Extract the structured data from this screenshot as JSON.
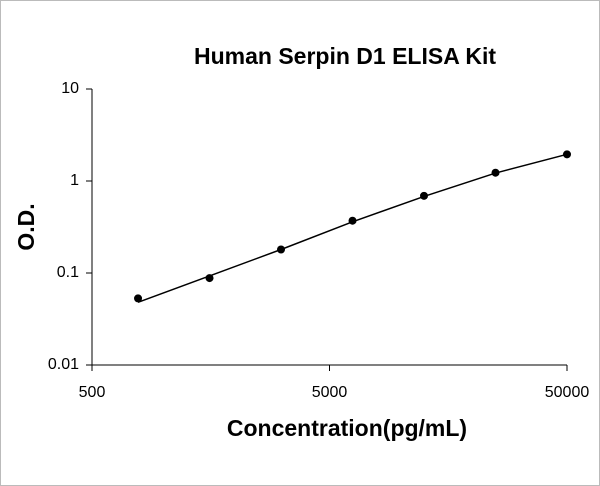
{
  "chart_data": {
    "type": "scatter",
    "title": "Human Serpin D1 ELISA Kit",
    "x_label": "Concentration(pg/mL)",
    "y_label": "O.D.",
    "x": [
      781.25,
      1562.5,
      3125,
      6250,
      12500,
      25000,
      50000
    ],
    "series": [
      {
        "color": "#000000",
        "mode": "markers",
        "values": [
          0.053,
          0.088,
          0.18,
          0.37,
          0.69,
          1.23,
          1.95
        ]
      },
      {
        "color": "#000000",
        "mode": "line",
        "values": [
          0.048,
          0.093,
          0.18,
          0.36,
          0.68,
          1.22,
          1.95
        ]
      }
    ],
    "xlim": [
      500,
      50000
    ],
    "ylim": [
      0.01,
      10
    ],
    "xticks": [
      500,
      5000,
      50000
    ],
    "yticks": [
      0.01,
      0.1,
      1,
      10
    ],
    "xscale": "log",
    "yscale": "log"
  }
}
